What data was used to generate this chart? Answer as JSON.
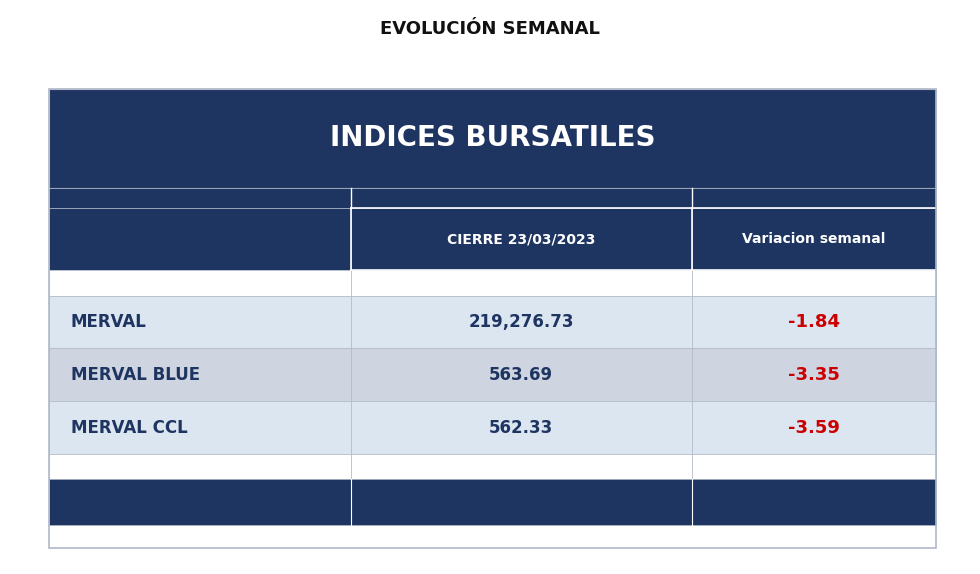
{
  "title": "EVOLUCIÓN SEMANAL",
  "table_title": "INDICES BURSATILES",
  "col_headers": [
    "",
    "CIERRE 23/03/2023",
    "Variacion semanal"
  ],
  "rows": [
    {
      "label": "MERVAL",
      "cierre": "219,276.73",
      "variacion": "-1.84"
    },
    {
      "label": "MERVAL BLUE",
      "cierre": "563.69",
      "variacion": "-3.35"
    },
    {
      "label": "MERVAL CCL",
      "cierre": "562.33",
      "variacion": "-3.59"
    }
  ],
  "bg_color": "#ffffff",
  "header_bg": "#1e3461",
  "header_text": "#ffffff",
  "col_header_bg": "#1e3461",
  "col_header_text": "#ffffff",
  "row_colors": [
    "#dce6f1",
    "#cfd5e0",
    "#dce6f1"
  ],
  "footer_bg": "#1e3461",
  "label_color": "#1e3461",
  "value_color": "#1e3461",
  "variation_color": "#cc0000",
  "title_fontsize": 13,
  "table_title_fontsize": 20,
  "col_header_fontsize": 10,
  "row_fontsize": 12,
  "outer_border_color": "#b0b8c8"
}
